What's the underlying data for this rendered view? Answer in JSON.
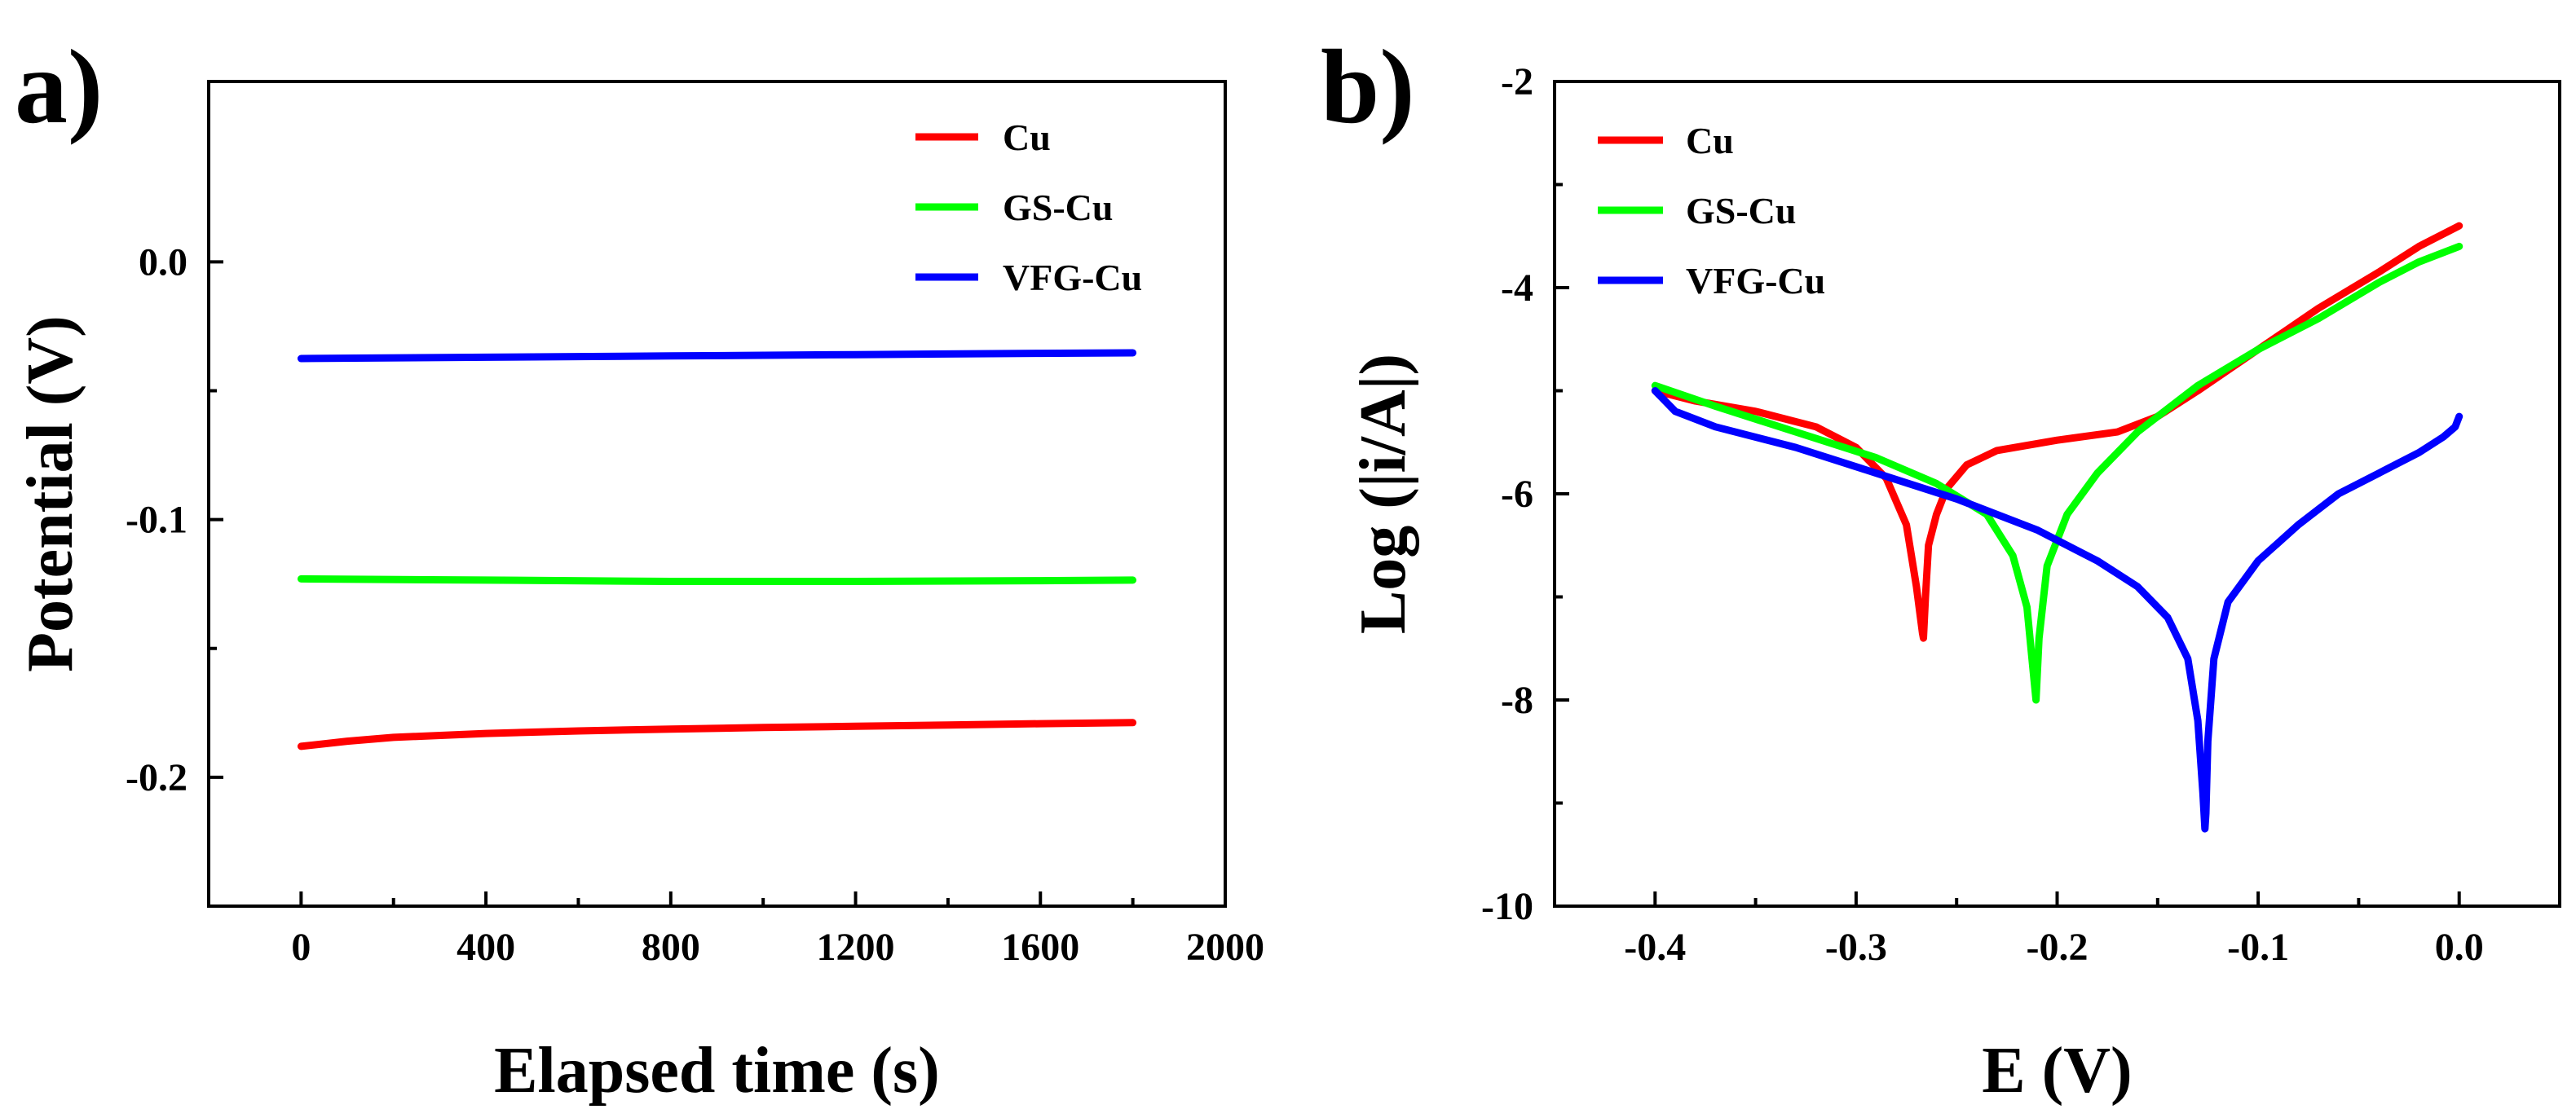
{
  "colors": {
    "Cu": "#ff0000",
    "GS-Cu": "#00ff00",
    "VFG-Cu": "#0000ff"
  },
  "chart_data": [
    {
      "panel": "a)",
      "type": "line",
      "title": "",
      "xlabel": "Elapsed time (s)",
      "ylabel": "Potential (V)",
      "xlim": [
        -200,
        2000
      ],
      "ylim": [
        -0.25,
        0.07
      ],
      "xticks": [
        0,
        400,
        800,
        1200,
        1600,
        2000
      ],
      "xtick_labels": [
        "0",
        "400",
        "800",
        "1200",
        "1600",
        "2000"
      ],
      "yticks": [
        -0.2,
        -0.1,
        0.0
      ],
      "ytick_labels": [
        "-0.2",
        "-0.1",
        "0.0"
      ],
      "legend_position": "top-right",
      "series": [
        {
          "name": "Cu",
          "color": "#ff0000",
          "x": [
            0,
            100,
            200,
            400,
            600,
            800,
            1000,
            1200,
            1400,
            1600,
            1800
          ],
          "y": [
            -0.188,
            -0.186,
            -0.1845,
            -0.183,
            -0.182,
            -0.1813,
            -0.1807,
            -0.1802,
            -0.1797,
            -0.1792,
            -0.1788
          ]
        },
        {
          "name": "GS-Cu",
          "color": "#00ff00",
          "x": [
            0,
            400,
            800,
            1200,
            1600,
            1800
          ],
          "y": [
            -0.123,
            -0.1235,
            -0.124,
            -0.124,
            -0.1237,
            -0.1235
          ]
        },
        {
          "name": "VFG-Cu",
          "color": "#0000ff",
          "x": [
            0,
            400,
            800,
            1200,
            1600,
            1800
          ],
          "y": [
            -0.0375,
            -0.037,
            -0.0365,
            -0.036,
            -0.0355,
            -0.0353
          ]
        }
      ]
    },
    {
      "panel": "b)",
      "type": "line",
      "title": "",
      "xlabel": "E (V)",
      "ylabel": "Log (|i/A|)",
      "xlim": [
        -0.45,
        0.05
      ],
      "ylim": [
        -10,
        -2
      ],
      "xticks": [
        -0.4,
        -0.3,
        -0.2,
        -0.1,
        0.0
      ],
      "xtick_labels": [
        "-0.4",
        "-0.3",
        "-0.2",
        "-0.1",
        "0.0"
      ],
      "yticks": [
        -10,
        -8,
        -6,
        -4,
        -2
      ],
      "ytick_labels": [
        "-10",
        "-8",
        "-6",
        "-4",
        "-2"
      ],
      "legend_position": "top-left",
      "series": [
        {
          "name": "Cu",
          "color": "#ff0000",
          "x": [
            -0.4,
            -0.38,
            -0.35,
            -0.32,
            -0.3,
            -0.285,
            -0.275,
            -0.27,
            -0.267,
            -0.2665,
            -0.2655,
            -0.264,
            -0.26,
            -0.255,
            -0.245,
            -0.23,
            -0.2,
            -0.17,
            -0.15,
            -0.13,
            -0.1,
            -0.07,
            -0.04,
            -0.02,
            0.0
          ],
          "y": [
            -5.0,
            -5.1,
            -5.2,
            -5.35,
            -5.55,
            -5.85,
            -6.3,
            -6.9,
            -7.35,
            -7.4,
            -7.0,
            -6.5,
            -6.2,
            -5.95,
            -5.72,
            -5.58,
            -5.48,
            -5.4,
            -5.25,
            -5.0,
            -4.6,
            -4.2,
            -3.85,
            -3.6,
            -3.4
          ]
        },
        {
          "name": "GS-Cu",
          "color": "#00ff00",
          "x": [
            -0.4,
            -0.37,
            -0.33,
            -0.29,
            -0.26,
            -0.235,
            -0.222,
            -0.215,
            -0.2115,
            -0.2105,
            -0.209,
            -0.205,
            -0.195,
            -0.18,
            -0.16,
            -0.13,
            -0.1,
            -0.07,
            -0.04,
            -0.02,
            0.0
          ],
          "y": [
            -4.95,
            -5.15,
            -5.4,
            -5.65,
            -5.9,
            -6.2,
            -6.6,
            -7.1,
            -7.8,
            -8.0,
            -7.4,
            -6.7,
            -6.2,
            -5.8,
            -5.4,
            -4.95,
            -4.6,
            -4.3,
            -3.95,
            -3.75,
            -3.6
          ]
        },
        {
          "name": "VFG-Cu",
          "color": "#0000ff",
          "x": [
            -0.4,
            -0.39,
            -0.37,
            -0.33,
            -0.29,
            -0.25,
            -0.21,
            -0.18,
            -0.16,
            -0.145,
            -0.135,
            -0.13,
            -0.1275,
            -0.1265,
            -0.126,
            -0.125,
            -0.122,
            -0.115,
            -0.1,
            -0.08,
            -0.06,
            -0.04,
            -0.02,
            -0.008,
            -0.002,
            0.0
          ],
          "y": [
            -5.0,
            -5.2,
            -5.35,
            -5.55,
            -5.8,
            -6.05,
            -6.35,
            -6.65,
            -6.9,
            -7.2,
            -7.6,
            -8.2,
            -8.9,
            -9.25,
            -9.1,
            -8.4,
            -7.6,
            -7.05,
            -6.65,
            -6.3,
            -6.0,
            -5.8,
            -5.6,
            -5.45,
            -5.35,
            -5.25
          ]
        }
      ]
    }
  ]
}
